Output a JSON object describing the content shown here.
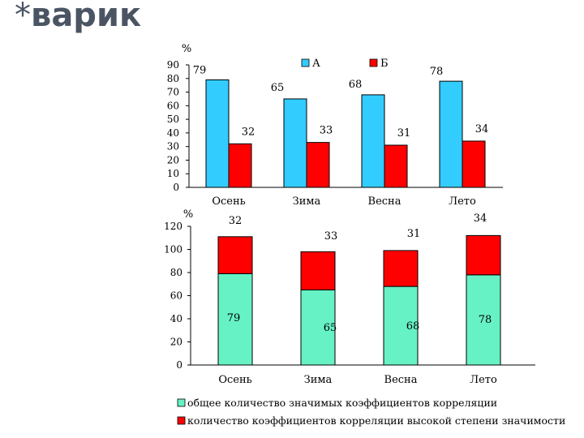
{
  "slide": {
    "star": "*",
    "title": "варик"
  },
  "chart_data": [
    {
      "type": "bar",
      "unit_label": "%",
      "categories": [
        "Осень",
        "Зима",
        "Весна",
        "Лето"
      ],
      "series": [
        {
          "name": "А",
          "values": [
            79,
            65,
            68,
            78
          ],
          "color": "#33ccff"
        },
        {
          "name": "Б",
          "values": [
            32,
            33,
            31,
            34
          ],
          "color": "#ff0000"
        }
      ],
      "yticks": [
        "0",
        "10",
        "20",
        "30",
        "40",
        "50",
        "60",
        "70",
        "80",
        "90"
      ],
      "ylim": [
        0,
        90
      ],
      "legend_position": "top",
      "grid": false
    },
    {
      "type": "bar",
      "stacked": true,
      "unit_label": "%",
      "categories": [
        "Осень",
        "Зима",
        "Весна",
        "Лето"
      ],
      "series": [
        {
          "name": "общее количество значимых коэффициентов корреляции",
          "values": [
            79,
            65,
            68,
            78
          ],
          "color": "#66f2c4"
        },
        {
          "name": "количество коэффициентов корреляции высокой степени значимости",
          "values": [
            32,
            33,
            31,
            34
          ],
          "color": "#ff0000"
        }
      ],
      "yticks": [
        "0",
        "20",
        "40",
        "60",
        "80",
        "100",
        "120"
      ],
      "ylim": [
        0,
        120
      ],
      "legend_position": "bottom",
      "grid": false
    }
  ]
}
